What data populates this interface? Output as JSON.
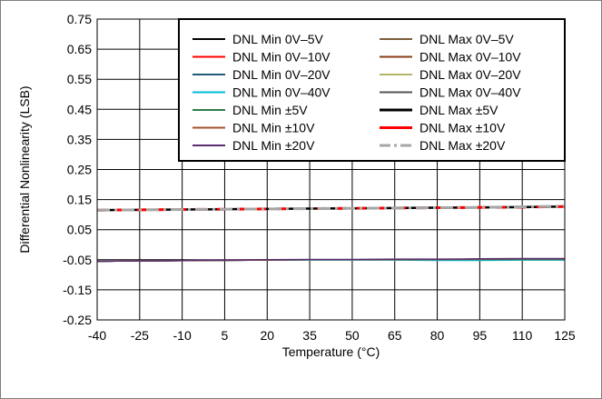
{
  "chart_data": {
    "type": "line",
    "title": "",
    "xlabel": "Temperature (°C)",
    "ylabel": "Differential Nonlinearity (LSB)",
    "xlim": [
      -40,
      125
    ],
    "ylim": [
      -0.25,
      0.75
    ],
    "xticks": [
      "-40",
      "-25",
      "-10",
      "5",
      "20",
      "35",
      "50",
      "65",
      "80",
      "95",
      "110",
      "125"
    ],
    "yticks": [
      "0.75",
      "0.65",
      "0.55",
      "0.45",
      "0.35",
      "0.25",
      "0.15",
      "0.05",
      "-0.05",
      "-0.15",
      "-0.25"
    ],
    "grid": true,
    "legend_position": "top-right",
    "x": [
      -40,
      -25,
      -10,
      5,
      20,
      35,
      50,
      65,
      80,
      95,
      110,
      125
    ],
    "series": [
      {
        "name": "DNL Min 0V–5V",
        "color": "#000000",
        "dash": "solid",
        "values": [
          -0.055,
          -0.054,
          -0.053,
          -0.052,
          -0.051,
          -0.05,
          -0.05,
          -0.05,
          -0.05,
          -0.05,
          -0.049,
          -0.049
        ]
      },
      {
        "name": "DNL Min 0V–10V",
        "color": "#ff0000",
        "dash": "solid",
        "values": [
          -0.055,
          -0.054,
          -0.053,
          -0.052,
          -0.051,
          -0.05,
          -0.05,
          -0.05,
          -0.05,
          -0.05,
          -0.049,
          -0.049
        ]
      },
      {
        "name": "DNL Min 0V–20V",
        "color": "#1f5c7a",
        "dash": "solid",
        "values": [
          -0.055,
          -0.054,
          -0.053,
          -0.052,
          -0.051,
          -0.05,
          -0.05,
          -0.05,
          -0.05,
          -0.05,
          -0.049,
          -0.049
        ]
      },
      {
        "name": "DNL Min 0V–40V",
        "color": "#00bcd4",
        "dash": "solid",
        "values": [
          -0.055,
          -0.054,
          -0.053,
          -0.052,
          -0.051,
          -0.051,
          -0.051,
          -0.051,
          -0.052,
          -0.052,
          -0.051,
          -0.051
        ]
      },
      {
        "name": "DNL Min ±5V",
        "color": "#2e7d4f",
        "dash": "solid",
        "values": [
          -0.055,
          -0.054,
          -0.053,
          -0.052,
          -0.051,
          -0.05,
          -0.05,
          -0.05,
          -0.049,
          -0.049,
          -0.049,
          -0.049
        ]
      },
      {
        "name": "DNL Min ±10V",
        "color": "#a0522d",
        "dash": "solid",
        "values": [
          -0.055,
          -0.054,
          -0.053,
          -0.052,
          -0.051,
          -0.05,
          -0.05,
          -0.049,
          -0.049,
          -0.048,
          -0.047,
          -0.047
        ]
      },
      {
        "name": "DNL Min ±20V",
        "color": "#5b2c6f",
        "dash": "solid",
        "values": [
          -0.055,
          -0.054,
          -0.053,
          -0.051,
          -0.05,
          -0.049,
          -0.049,
          -0.048,
          -0.048,
          -0.047,
          -0.046,
          -0.046
        ]
      },
      {
        "name": "DNL Max 0V–5V",
        "color": "#7a5c3a",
        "dash": "solid",
        "values": [
          0.114,
          0.116,
          0.117,
          0.118,
          0.119,
          0.12,
          0.121,
          0.122,
          0.123,
          0.124,
          0.125,
          0.126
        ]
      },
      {
        "name": "DNL Max 0V–10V",
        "color": "#8b3a1a",
        "dash": "solid",
        "values": [
          0.114,
          0.116,
          0.117,
          0.118,
          0.119,
          0.12,
          0.121,
          0.122,
          0.123,
          0.124,
          0.125,
          0.126
        ]
      },
      {
        "name": "DNL Max 0V–20V",
        "color": "#b5b56a",
        "dash": "solid",
        "values": [
          0.114,
          0.116,
          0.117,
          0.118,
          0.119,
          0.12,
          0.121,
          0.122,
          0.123,
          0.124,
          0.125,
          0.126
        ]
      },
      {
        "name": "DNL Max 0V–40V",
        "color": "#555555",
        "dash": "solid",
        "values": [
          0.114,
          0.116,
          0.117,
          0.118,
          0.119,
          0.12,
          0.121,
          0.122,
          0.123,
          0.124,
          0.125,
          0.126
        ]
      },
      {
        "name": "DNL Max ±5V",
        "color": "#000000",
        "dash": "solid",
        "values": [
          0.115,
          0.116,
          0.117,
          0.118,
          0.119,
          0.12,
          0.121,
          0.122,
          0.123,
          0.124,
          0.125,
          0.127
        ]
      },
      {
        "name": "DNL Max ±10V",
        "color": "#ff0000",
        "dash": "dashed",
        "values": [
          0.115,
          0.116,
          0.117,
          0.118,
          0.119,
          0.12,
          0.121,
          0.122,
          0.123,
          0.124,
          0.125,
          0.127
        ]
      },
      {
        "name": "DNL Max ±20V",
        "color": "#a6a6a6",
        "dash": "dashdot",
        "values": [
          0.115,
          0.116,
          0.117,
          0.118,
          0.119,
          0.12,
          0.121,
          0.122,
          0.123,
          0.124,
          0.126,
          0.128
        ]
      }
    ]
  }
}
